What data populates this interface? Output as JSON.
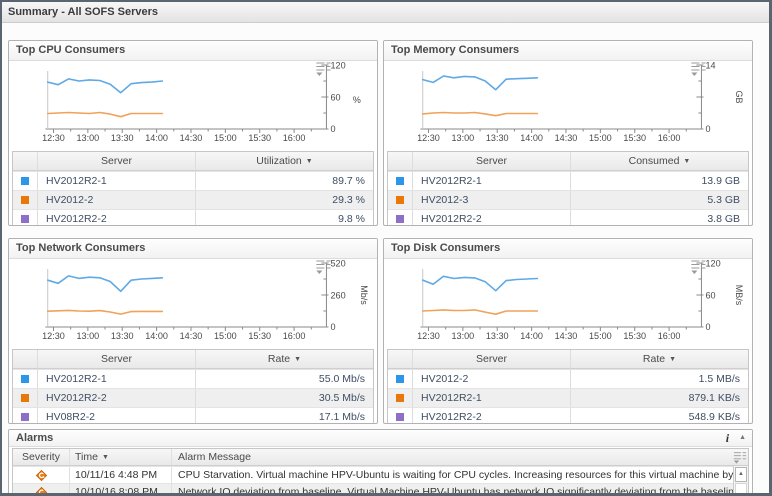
{
  "header": {
    "title": "Summary - All SOFS Servers"
  },
  "icons": {
    "sort_glyph": "▼",
    "info_glyph": "i",
    "collapse_glyph": "▲",
    "scroll_up_glyph": "▲",
    "chart_options_icon": "dashed-list-with-down-arrow",
    "warning_icon": "orange-diamond-warning"
  },
  "series_colors": [
    "#2e96e8",
    "#e8780a",
    "#8d6fc8"
  ],
  "panels": [
    {
      "title": "Top CPU Consumers",
      "columns": [
        "Server",
        "Utilization"
      ],
      "rows": [
        [
          "HV2012R2-1",
          "89.7 %"
        ],
        [
          "HV2012-2",
          "29.3 %"
        ],
        [
          "HV2012R2-2",
          "9.8 %"
        ]
      ]
    },
    {
      "title": "Top Memory Consumers",
      "columns": [
        "Server",
        "Consumed"
      ],
      "rows": [
        [
          "HV2012R2-1",
          "13.9 GB"
        ],
        [
          "HV2012-3",
          "5.3 GB"
        ],
        [
          "HV2012R2-2",
          "3.8 GB"
        ]
      ]
    },
    {
      "title": "Top Network Consumers",
      "columns": [
        "Server",
        "Rate"
      ],
      "rows": [
        [
          "HV2012R2-1",
          "55.0 Mb/s"
        ],
        [
          "HV2012R2-2",
          "30.5 Mb/s"
        ],
        [
          "HV08R2-2",
          "17.1 Mb/s"
        ]
      ]
    },
    {
      "title": "Top Disk Consumers",
      "columns": [
        "Server",
        "Rate"
      ],
      "rows": [
        [
          "HV2012-2",
          "1.5 MB/s"
        ],
        [
          "HV2012R2-1",
          "879.1 KB/s"
        ],
        [
          "HV2012R2-2",
          "548.9 KB/s"
        ]
      ]
    }
  ],
  "chart_data": [
    {
      "type": "line",
      "title": "Top CPU Consumers",
      "ylabel": "%",
      "ylabel_rotated": false,
      "ylim": [
        0,
        120
      ],
      "y_tick_labels": [
        "0",
        "60",
        "120"
      ],
      "x_ticks": [
        "12:30",
        "13:00",
        "13:30",
        "14:00",
        "14:30",
        "15:00",
        "15:30",
        "16:00"
      ],
      "data_time_span": "12:25 to 14:05",
      "legend_position": "table-below",
      "grid": false,
      "series": [
        {
          "name": "HV2012R2-1",
          "color": "#5ea9e6",
          "values": [
            88,
            83,
            94,
            90,
            92,
            91,
            84,
            68,
            85,
            87,
            88,
            90
          ]
        },
        {
          "name": "HV2012-2",
          "color": "#f0a259",
          "values": [
            29,
            30,
            31,
            30,
            29,
            31,
            28,
            23,
            29,
            29,
            29,
            29
          ]
        }
      ]
    },
    {
      "type": "line",
      "title": "Top Memory Consumers",
      "ylabel": "GB",
      "ylabel_rotated": true,
      "ylim": [
        0,
        14
      ],
      "y_tick_labels": [
        "0",
        "",
        "14"
      ],
      "x_ticks": [
        "12:30",
        "13:00",
        "13:30",
        "14:00",
        "14:30",
        "15:00",
        "15:30",
        "16:00"
      ],
      "data_time_span": "12:25 to 14:05",
      "legend_position": "table-below",
      "grid": false,
      "series": [
        {
          "name": "HV2012R2-1",
          "color": "#5ea9e6",
          "values": [
            10.8,
            10.2,
            11.6,
            11.2,
            11.5,
            11.4,
            10.5,
            8.6,
            10.9,
            11.0,
            11.1,
            11.2
          ]
        },
        {
          "name": "HV2012-3",
          "color": "#f0a259",
          "values": [
            3.3,
            3.5,
            3.6,
            3.5,
            3.5,
            3.6,
            3.3,
            2.9,
            3.4,
            3.4,
            3.4,
            3.4
          ]
        }
      ]
    },
    {
      "type": "line",
      "title": "Top Network Consumers",
      "ylabel": "Mb/s",
      "ylabel_rotated": true,
      "ylim": [
        0,
        520
      ],
      "y_tick_labels": [
        "0",
        "260",
        "520"
      ],
      "x_ticks": [
        "12:30",
        "13:00",
        "13:30",
        "14:00",
        "14:30",
        "15:00",
        "15:30",
        "16:00"
      ],
      "data_time_span": "12:25 to 14:05",
      "legend_position": "table-below",
      "grid": false,
      "series": [
        {
          "name": "HV2012R2-1",
          "color": "#5ea9e6",
          "values": [
            380,
            355,
            415,
            395,
            405,
            400,
            370,
            290,
            380,
            390,
            395,
            400
          ]
        },
        {
          "name": "HV2012R2-2",
          "color": "#f0a259",
          "values": [
            128,
            132,
            135,
            130,
            128,
            133,
            122,
            105,
            125,
            127,
            127,
            127
          ]
        }
      ]
    },
    {
      "type": "line",
      "title": "Top Disk Consumers",
      "ylabel": "MB/s",
      "ylabel_rotated": true,
      "ylim": [
        0,
        120
      ],
      "y_tick_labels": [
        "0",
        "60",
        "120"
      ],
      "x_ticks": [
        "12:30",
        "13:00",
        "13:30",
        "14:00",
        "14:30",
        "15:00",
        "15:30",
        "16:00"
      ],
      "data_time_span": "12:25 to 14:05",
      "legend_position": "table-below",
      "grid": false,
      "series": [
        {
          "name": "HV2012-2",
          "color": "#5ea9e6",
          "values": [
            88,
            80,
            95,
            91,
            93,
            92,
            85,
            68,
            87,
            89,
            90,
            91
          ]
        },
        {
          "name": "HV2012R2-1",
          "color": "#f0a259",
          "values": [
            30,
            31,
            32,
            31,
            31,
            32,
            28,
            24,
            30,
            30,
            30,
            30
          ]
        }
      ]
    }
  ],
  "alarms": {
    "title": "Alarms",
    "columns": [
      "Severity",
      "Time",
      "Alarm Message"
    ],
    "rows": [
      {
        "severity": "warning",
        "time": "10/11/16 4:48 PM",
        "message": "CPU Starvation. Virtual machine HPV-Ubuntu is waiting for CPU cycles. Increasing resources for this virtual machine by adjusting th"
      },
      {
        "severity": "warning",
        "time": "10/10/16 8:08 PM",
        "message": "Network IO deviation from baseline. Virtual Machine HPV-Ubuntu has network IO significantly deviating from the baseline."
      }
    ]
  }
}
